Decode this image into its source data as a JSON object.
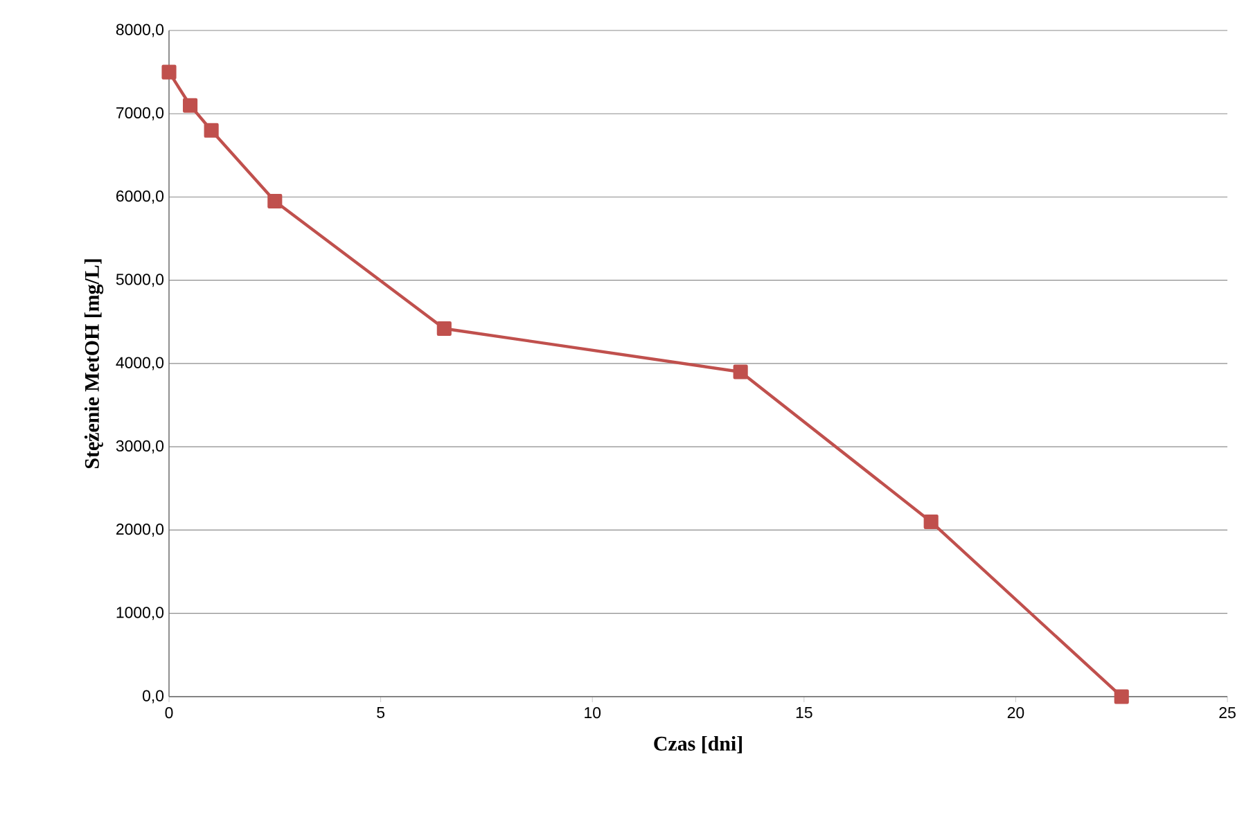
{
  "chart_data": {
    "type": "line",
    "xlabel": "Czas [dni]",
    "ylabel": "Stężenie MetOH  [mg/L]",
    "x": [
      0,
      0.5,
      1,
      2.5,
      6.5,
      13.5,
      18,
      22.5
    ],
    "series": [
      {
        "color": "#c0504d",
        "values": [
          7500,
          7100,
          6800,
          5950,
          4420,
          3900,
          2100,
          0
        ]
      }
    ],
    "xlim": [
      0,
      25
    ],
    "xticks": [
      0,
      5,
      10,
      15,
      20,
      25
    ],
    "ylim": [
      0,
      8000
    ],
    "yticks": [
      {
        "value": 0,
        "label": "0,0"
      },
      {
        "value": 1000,
        "label": "1000,0"
      },
      {
        "value": 2000,
        "label": "2000,0"
      },
      {
        "value": 3000,
        "label": "3000,0"
      },
      {
        "value": 4000,
        "label": "4000,0"
      },
      {
        "value": 5000,
        "label": "5000,0"
      },
      {
        "value": 6000,
        "label": "6000,0"
      },
      {
        "value": 7000,
        "label": "7000,0"
      },
      {
        "value": 8000,
        "label": "8000,0"
      }
    ],
    "grid": "y",
    "marker": "square",
    "line_style": "solid",
    "legend": false
  }
}
